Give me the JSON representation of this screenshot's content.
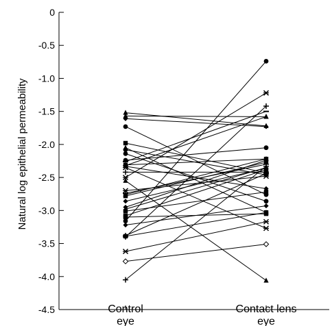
{
  "chart_data": {
    "type": "line",
    "ylabel": "Natural log epithelial permeability",
    "xlabel": "",
    "ylim": [
      -4.5,
      0
    ],
    "yticks": [
      0,
      -0.5,
      -1.0,
      -1.5,
      -2.0,
      -2.5,
      -3.0,
      -3.5,
      -4.0,
      -4.5
    ],
    "ytick_labels": [
      "0",
      "-0.5",
      "-1.0",
      "-1.5",
      "-2.0",
      "-2.5",
      "-3.0",
      "-3.5",
      "-4.0",
      "-4.5"
    ],
    "categories": [
      [
        "Control",
        "eye"
      ],
      [
        "Contact lens",
        "eye"
      ]
    ],
    "grid": false,
    "legend": "none",
    "line_color": "#000000",
    "pairs": [
      {
        "control": -1.52,
        "contact": -1.72,
        "marker": "triangle"
      },
      {
        "control": -1.57,
        "contact": -1.58,
        "marker": "triangle"
      },
      {
        "control": -1.61,
        "contact": -1.73,
        "marker": "diamond"
      },
      {
        "control": -1.73,
        "contact": -2.76,
        "marker": "circle"
      },
      {
        "control": -1.98,
        "contact": -2.43,
        "marker": "square"
      },
      {
        "control": -2.05,
        "contact": -3.03,
        "marker": "triangle"
      },
      {
        "control": -2.08,
        "contact": -2.46,
        "marker": "circle"
      },
      {
        "control": -2.14,
        "contact": -2.86,
        "marker": "circle"
      },
      {
        "control": -2.24,
        "contact": -2.05,
        "marker": "circle"
      },
      {
        "control": -2.26,
        "contact": -1.5,
        "marker": "dash"
      },
      {
        "control": -2.31,
        "contact": -2.22,
        "marker": "square"
      },
      {
        "control": -2.32,
        "contact": -1.58,
        "marker": "triangle"
      },
      {
        "control": -2.33,
        "contact": -2.67,
        "marker": "diamond"
      },
      {
        "control": -2.35,
        "contact": -3.27,
        "marker": "star"
      },
      {
        "control": -2.42,
        "contact": -2.42,
        "marker": "plus"
      },
      {
        "control": -2.5,
        "contact": -1.22,
        "marker": "star"
      },
      {
        "control": -2.55,
        "contact": -4.06,
        "marker": "triangle"
      },
      {
        "control": -2.7,
        "contact": -2.48,
        "marker": "star"
      },
      {
        "control": -2.74,
        "contact": -2.3,
        "marker": "plus"
      },
      {
        "control": -2.76,
        "contact": -2.22,
        "marker": "triangle"
      },
      {
        "control": -2.78,
        "contact": -2.27,
        "marker": "square"
      },
      {
        "control": -2.86,
        "contact": -2.36,
        "marker": "diamond"
      },
      {
        "control": -2.95,
        "contact": -2.24,
        "marker": "diamond"
      },
      {
        "control": -2.98,
        "contact": -2.35,
        "marker": "triangle"
      },
      {
        "control": -3.01,
        "contact": -2.72,
        "marker": "square"
      },
      {
        "control": -3.08,
        "contact": -2.38,
        "marker": "square"
      },
      {
        "control": -3.1,
        "contact": -3.05,
        "marker": "square"
      },
      {
        "control": -3.16,
        "contact": -0.74,
        "marker": "circle"
      },
      {
        "control": -3.22,
        "contact": -2.93,
        "marker": "diamond"
      },
      {
        "control": -3.38,
        "contact": -2.44,
        "marker": "plus"
      },
      {
        "control": -3.39,
        "contact": -3.03,
        "marker": "square"
      },
      {
        "control": -3.4,
        "contact": -1.42,
        "marker": "plus"
      },
      {
        "control": -3.62,
        "contact": -3.17,
        "marker": "star"
      },
      {
        "control": -3.77,
        "contact": -3.51,
        "marker": "diamond-open"
      },
      {
        "control": -4.05,
        "contact": -2.33,
        "marker": "plus"
      }
    ]
  }
}
